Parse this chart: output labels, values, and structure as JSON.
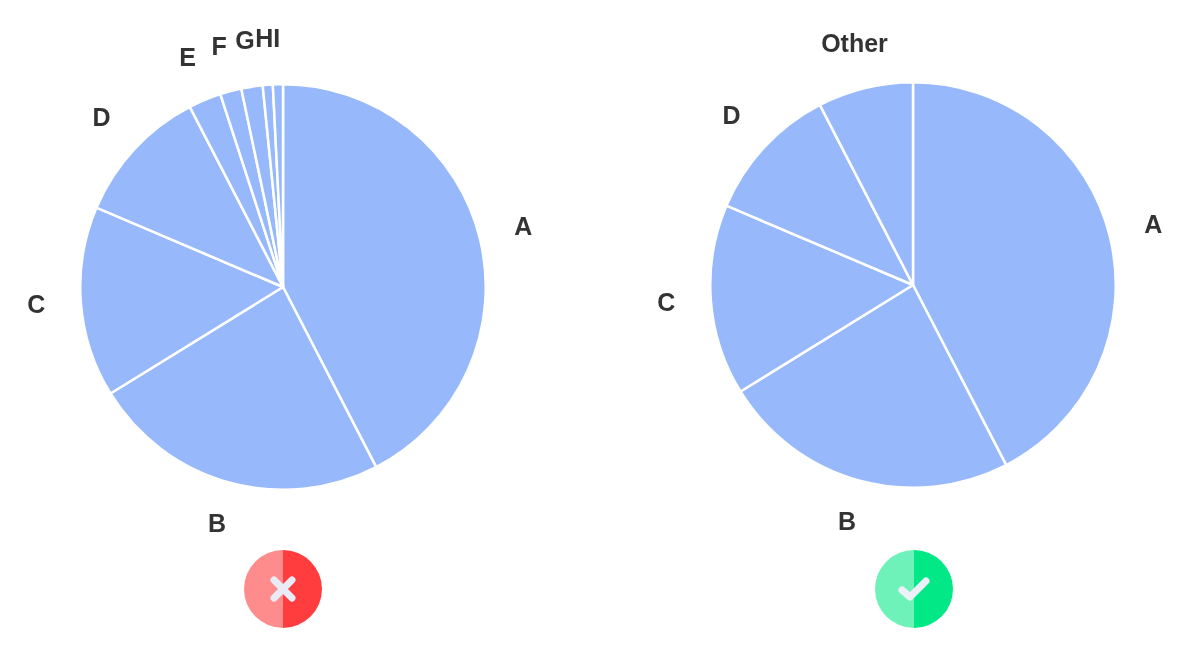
{
  "chart_data": [
    {
      "type": "pie",
      "categories": [
        "A",
        "B",
        "C",
        "D",
        "E",
        "F",
        "G",
        "H",
        "I"
      ],
      "values": [
        42.4,
        23.8,
        15.2,
        11.0,
        2.6,
        1.7,
        1.7,
        0.8,
        0.8
      ],
      "colors": [
        "#97b9fb",
        "#97b9fb",
        "#97b9fb",
        "#97b9fb",
        "#97b9fb",
        "#97b9fb",
        "#97b9fb",
        "#97b9fb",
        "#97b9fb"
      ]
    },
    {
      "type": "pie",
      "categories": [
        "A",
        "B",
        "C",
        "D",
        "Other"
      ],
      "values": [
        42.4,
        23.8,
        15.2,
        11.0,
        7.6
      ],
      "colors": [
        "#97b9fb",
        "#97b9fb",
        "#97b9fb",
        "#97b9fb",
        "#97b9fb"
      ]
    }
  ]
}
